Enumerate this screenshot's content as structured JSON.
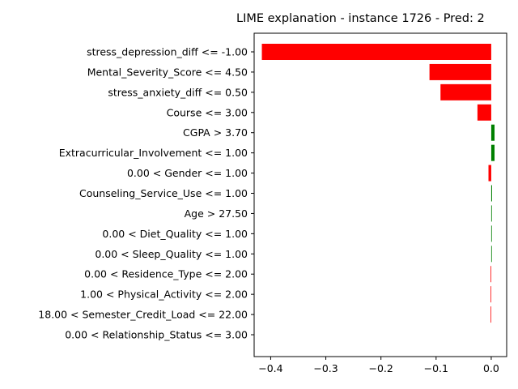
{
  "chart_data": {
    "type": "bar",
    "orientation": "horizontal",
    "title": "LIME explanation - instance 1726 - Pred: 2",
    "xlabel": "",
    "ylabel": "",
    "xlim": [
      -0.43,
      0.028
    ],
    "x_ticks": [
      -0.4,
      -0.3,
      -0.2,
      -0.1,
      0.0
    ],
    "x_tick_labels": [
      "−0.4",
      "−0.3",
      "−0.2",
      "−0.1",
      "0.0"
    ],
    "grid": false,
    "colors": {
      "positive": "#008000",
      "negative": "#ff0000"
    },
    "categories": [
      "stress_depression_diff <= -1.00",
      "Mental_Severity_Score <= 4.50",
      "stress_anxiety_diff <= 0.50",
      "Course <= 3.00",
      "CGPA > 3.70",
      "Extracurricular_Involvement <= 1.00",
      "0.00 < Gender <= 1.00",
      "Counseling_Service_Use <= 1.00",
      "Age > 27.50",
      "0.00 < Diet_Quality <= 1.00",
      "0.00 < Sleep_Quality <= 1.00",
      "0.00 < Residence_Type <= 2.00",
      "1.00 < Physical_Activity <= 2.00",
      "18.00 < Semester_Credit_Load <= 22.00",
      "0.00 < Relationship_Status <= 3.00"
    ],
    "values": [
      -0.416,
      -0.112,
      -0.092,
      -0.025,
      0.006,
      0.006,
      -0.005,
      0.0015,
      0.0012,
      0.001,
      0.0008,
      -0.0012,
      -0.001,
      -0.0009,
      0.0
    ]
  }
}
